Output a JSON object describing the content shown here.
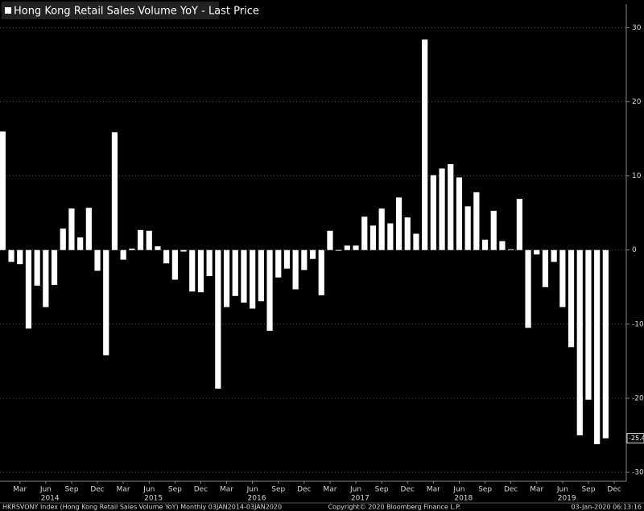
{
  "chart_data": {
    "type": "bar",
    "categories": [
      null,
      null,
      "Mar",
      null,
      null,
      "Jun",
      null,
      null,
      "Sep",
      null,
      null,
      "Dec",
      null,
      null,
      "Mar",
      null,
      null,
      "Jun",
      null,
      null,
      "Sep",
      null,
      null,
      "Dec",
      null,
      null,
      "Mar",
      null,
      null,
      "Jun",
      null,
      null,
      "Sep",
      null,
      null,
      "Dec",
      null,
      null,
      "Mar",
      null,
      null,
      "Jun",
      null,
      null,
      "Sep",
      null,
      null,
      "Dec",
      null,
      null,
      "Mar",
      null,
      null,
      "Jun",
      null,
      null,
      "Sep",
      null,
      null,
      "Dec",
      null,
      null,
      "Mar",
      null,
      null,
      "Jun",
      null,
      null,
      "Sep",
      null,
      null,
      "Dec"
    ],
    "years": [
      "2014",
      "2015",
      "2016",
      "2017",
      "2018",
      "2019"
    ],
    "series": [
      {
        "name": "Hong Kong Retail Sales Volume YoY - Last Price",
        "color": "#ffffff",
        "values": [
          16,
          -1.6,
          -1.9,
          -10.6,
          -4.8,
          -7.7,
          -4.7,
          2.9,
          5.6,
          1.7,
          5.7,
          -2.8,
          -14.2,
          15.9,
          -1.3,
          0.2,
          2.7,
          2.6,
          0.5,
          -1.8,
          -4.0,
          -0.2,
          -5.6,
          -5.7,
          -3.5,
          -18.7,
          -7.7,
          -6.2,
          -7.1,
          -7.9,
          -6.9,
          -10.9,
          -3.7,
          -2.5,
          -5.3,
          -2.7,
          -1.2,
          -6.1,
          2.6,
          -0.1,
          0.6,
          0.6,
          4.5,
          3.3,
          5.6,
          3.6,
          7.1,
          4.4,
          2.2,
          28.4,
          10.1,
          11.0,
          11.6,
          9.8,
          5.9,
          7.8,
          1.4,
          5.3,
          1.2,
          0.1,
          6.9,
          -10.5,
          -0.6,
          -5.0,
          -1.6,
          -7.7,
          -13.1,
          -25.0,
          -20.2,
          -26.2,
          -25.4,
          null
        ]
      }
    ],
    "ylim": [
      -31.2,
      33.2
    ],
    "yticks": [
      -30,
      -20,
      -10,
      0,
      10,
      20,
      30
    ],
    "grid": true,
    "source": "HKRSVONY Index (Hong Kong Retail Sales Volume YoY)  Monthly 03JAN2014-03JAN2020",
    "copyright": "Copyright© 2020 Bloomberg Finance L.P.",
    "timestamp": "03-Jan-2020 06:13:16"
  }
}
